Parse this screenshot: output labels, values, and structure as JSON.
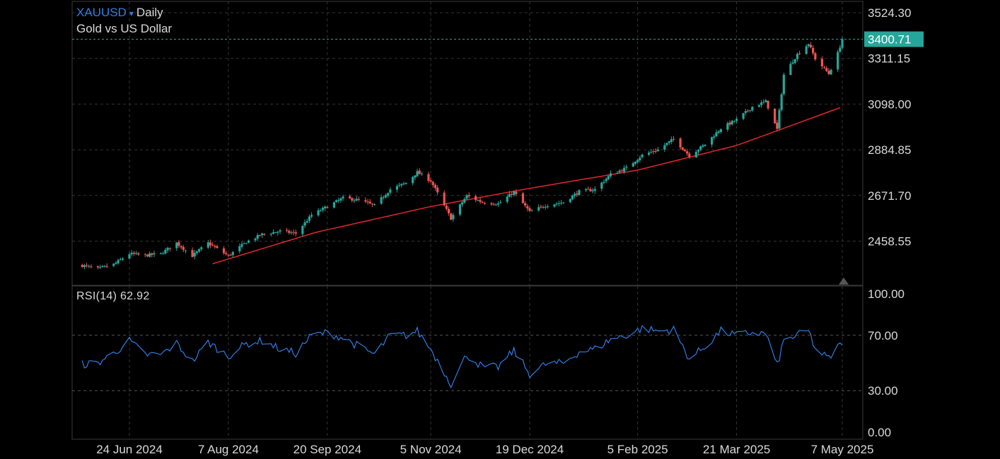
{
  "header": {
    "symbol": "XAUUSD",
    "symbol_arrow": "▾",
    "interval": "Daily",
    "description": "Gold vs US Dollar"
  },
  "colors": {
    "up": "#26a69a",
    "down": "#ef5350",
    "ma": "#e3262b",
    "rsi": "#2f7de1",
    "last_price_bg": "#26a69a"
  },
  "chart_data": [
    {
      "type": "candlestick",
      "title": "",
      "last_price": 3400.71,
      "yticks": [
        2458.55,
        2671.7,
        2884.85,
        3098.0,
        3311.15,
        3524.3
      ],
      "ylim": [
        2353,
        3575
      ],
      "xticks": [
        {
          "label": "24 Jun 2024",
          "date": "2024-06-24"
        },
        {
          "label": "7 Aug 2024",
          "date": "2024-08-07"
        },
        {
          "label": "20 Sep 2024",
          "date": "2024-09-20"
        },
        {
          "label": "5 Nov 2024",
          "date": "2024-11-05"
        },
        {
          "label": "19 Dec 2024",
          "date": "2024-12-19"
        },
        {
          "label": "5 Feb 2025",
          "date": "2025-02-05"
        },
        {
          "label": "21 Mar 2025",
          "date": "2025-03-21"
        },
        {
          "label": "7 May 2025",
          "date": "2025-05-07"
        }
      ],
      "close_keypoints": [
        [
          "2024-06-03",
          2345
        ],
        [
          "2024-06-10",
          2330
        ],
        [
          "2024-06-17",
          2350
        ],
        [
          "2024-06-24",
          2400
        ],
        [
          "2024-07-01",
          2392
        ],
        [
          "2024-07-08",
          2400
        ],
        [
          "2024-07-15",
          2450
        ],
        [
          "2024-07-22",
          2390
        ],
        [
          "2024-07-29",
          2450
        ],
        [
          "2024-08-07",
          2390
        ],
        [
          "2024-08-15",
          2455
        ],
        [
          "2024-08-22",
          2490
        ],
        [
          "2024-08-30",
          2505
        ],
        [
          "2024-09-06",
          2495
        ],
        [
          "2024-09-13",
          2580
        ],
        [
          "2024-09-20",
          2620
        ],
        [
          "2024-09-27",
          2660
        ],
        [
          "2024-10-04",
          2650
        ],
        [
          "2024-10-11",
          2625
        ],
        [
          "2024-10-18",
          2700
        ],
        [
          "2024-10-25",
          2730
        ],
        [
          "2024-10-30",
          2780
        ],
        [
          "2024-11-05",
          2740
        ],
        [
          "2024-11-14",
          2565
        ],
        [
          "2024-11-21",
          2670
        ],
        [
          "2024-11-28",
          2640
        ],
        [
          "2024-12-05",
          2633
        ],
        [
          "2024-12-12",
          2688
        ],
        [
          "2024-12-19",
          2595
        ],
        [
          "2024-12-26",
          2625
        ],
        [
          "2025-01-03",
          2640
        ],
        [
          "2025-01-10",
          2690
        ],
        [
          "2025-01-17",
          2700
        ],
        [
          "2025-01-24",
          2770
        ],
        [
          "2025-01-31",
          2800
        ],
        [
          "2025-02-07",
          2860
        ],
        [
          "2025-02-14",
          2885
        ],
        [
          "2025-02-21",
          2935
        ],
        [
          "2025-02-28",
          2858
        ],
        [
          "2025-03-07",
          2910
        ],
        [
          "2025-03-14",
          2985
        ],
        [
          "2025-03-21",
          3025
        ],
        [
          "2025-03-28",
          3085
        ],
        [
          "2025-04-03",
          3110
        ],
        [
          "2025-04-08",
          2980
        ],
        [
          "2025-04-11",
          3235
        ],
        [
          "2025-04-17",
          3330
        ],
        [
          "2025-04-22",
          3380
        ],
        [
          "2025-04-25",
          3310
        ],
        [
          "2025-05-01",
          3240
        ],
        [
          "2025-05-05",
          3335
        ],
        [
          "2025-05-07",
          3400.71
        ]
      ],
      "series": [
        {
          "name": "",
          "type": "line",
          "keypoints": [
            [
              "2024-07-31",
              2353
            ],
            [
              "2024-09-15",
              2500
            ],
            [
              "2024-11-05",
              2620
            ],
            [
              "2024-12-19",
              2705
            ],
            [
              "2025-02-05",
              2790
            ],
            [
              "2025-03-21",
              2905
            ],
            [
              "2025-05-07",
              3085
            ]
          ]
        }
      ]
    },
    {
      "type": "line",
      "label": "RSI(14)",
      "value": 62.92,
      "ylim": [
        0,
        100
      ],
      "yticks": [
        0.0,
        30.0,
        70.0,
        100.0
      ],
      "yticks_text": [
        "0.00",
        "30.00",
        "70.00",
        "100.00"
      ],
      "levels": [
        30,
        70
      ],
      "keypoints": [
        [
          "2024-06-03",
          49
        ],
        [
          "2024-06-10",
          50
        ],
        [
          "2024-06-17",
          57
        ],
        [
          "2024-06-24",
          66
        ],
        [
          "2024-07-01",
          56
        ],
        [
          "2024-07-08",
          56
        ],
        [
          "2024-07-15",
          64
        ],
        [
          "2024-07-22",
          51
        ],
        [
          "2024-07-29",
          65
        ],
        [
          "2024-08-07",
          55
        ],
        [
          "2024-08-15",
          64
        ],
        [
          "2024-08-22",
          66
        ],
        [
          "2024-08-30",
          60
        ],
        [
          "2024-09-06",
          57
        ],
        [
          "2024-09-13",
          70
        ],
        [
          "2024-09-20",
          72
        ],
        [
          "2024-09-27",
          68
        ],
        [
          "2024-10-04",
          62
        ],
        [
          "2024-10-11",
          56
        ],
        [
          "2024-10-18",
          70
        ],
        [
          "2024-10-25",
          70
        ],
        [
          "2024-10-30",
          73
        ],
        [
          "2024-11-05",
          60
        ],
        [
          "2024-11-14",
          35
        ],
        [
          "2024-11-21",
          56
        ],
        [
          "2024-11-28",
          47
        ],
        [
          "2024-12-05",
          47
        ],
        [
          "2024-12-12",
          59
        ],
        [
          "2024-12-19",
          42
        ],
        [
          "2024-12-26",
          49
        ],
        [
          "2025-01-03",
          50
        ],
        [
          "2025-01-10",
          58
        ],
        [
          "2025-01-17",
          60
        ],
        [
          "2025-01-24",
          67
        ],
        [
          "2025-01-31",
          70
        ],
        [
          "2025-02-07",
          75
        ],
        [
          "2025-02-14",
          73
        ],
        [
          "2025-02-21",
          74
        ],
        [
          "2025-02-28",
          53
        ],
        [
          "2025-03-07",
          62
        ],
        [
          "2025-03-14",
          73
        ],
        [
          "2025-03-21",
          70
        ],
        [
          "2025-03-28",
          72
        ],
        [
          "2025-04-03",
          71
        ],
        [
          "2025-04-08",
          48
        ],
        [
          "2025-04-11",
          66
        ],
        [
          "2025-04-17",
          70
        ],
        [
          "2025-04-22",
          73
        ],
        [
          "2025-04-25",
          60
        ],
        [
          "2025-05-01",
          53
        ],
        [
          "2025-05-05",
          62
        ],
        [
          "2025-05-07",
          62.92
        ]
      ]
    }
  ]
}
